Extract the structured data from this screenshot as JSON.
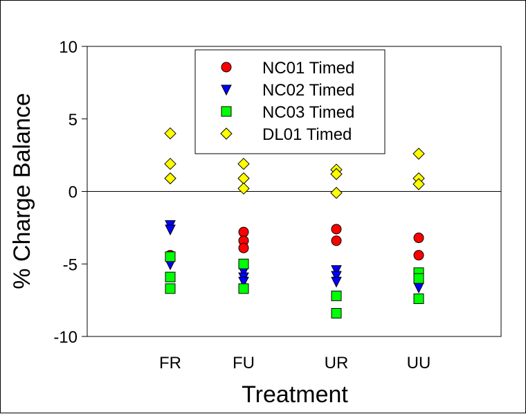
{
  "chart_data": {
    "type": "scatter",
    "title": "",
    "xlabel": "Treatment",
    "ylabel": "% Charge Balance",
    "categories": [
      "FR",
      "FU",
      "UR",
      "UU"
    ],
    "ylim": [
      -10,
      10
    ],
    "yticks": [
      "10",
      "5",
      "0",
      "-5",
      "-10"
    ],
    "zero_line": true,
    "grid": false,
    "legend_position": "top-center",
    "series": [
      {
        "name": "NC01 Timed",
        "marker": "circle",
        "color": "#ff0000",
        "points": [
          {
            "x": "FR",
            "y": -4.4
          },
          {
            "x": "FU",
            "y": -2.8
          },
          {
            "x": "FU",
            "y": -3.4
          },
          {
            "x": "FU",
            "y": -3.9
          },
          {
            "x": "UR",
            "y": -2.6
          },
          {
            "x": "UR",
            "y": -3.4
          },
          {
            "x": "UU",
            "y": -3.2
          },
          {
            "x": "UU",
            "y": -4.4
          }
        ]
      },
      {
        "name": "NC02 Timed",
        "marker": "triangle-down",
        "color": "#0000ff",
        "points": [
          {
            "x": "FR",
            "y": -2.3
          },
          {
            "x": "FR",
            "y": -2.6
          },
          {
            "x": "FR",
            "y": -5.0
          },
          {
            "x": "FU",
            "y": -5.5
          },
          {
            "x": "FU",
            "y": -5.9
          },
          {
            "x": "FU",
            "y": -6.2
          },
          {
            "x": "UR",
            "y": -5.4
          },
          {
            "x": "UR",
            "y": -5.8
          },
          {
            "x": "UR",
            "y": -6.2
          },
          {
            "x": "UU",
            "y": -6.6
          }
        ]
      },
      {
        "name": "NC03 Timed",
        "marker": "square",
        "color": "#00ff00",
        "points": [
          {
            "x": "FR",
            "y": -4.5
          },
          {
            "x": "FR",
            "y": -5.9
          },
          {
            "x": "FR",
            "y": -6.7
          },
          {
            "x": "FU",
            "y": -5.0
          },
          {
            "x": "FU",
            "y": -6.7
          },
          {
            "x": "UR",
            "y": -7.2
          },
          {
            "x": "UR",
            "y": -8.4
          },
          {
            "x": "UU",
            "y": -5.6
          },
          {
            "x": "UU",
            "y": -6.0
          },
          {
            "x": "UU",
            "y": -7.4
          }
        ]
      },
      {
        "name": "DL01 Timed",
        "marker": "diamond",
        "color": "#ffff00",
        "points": [
          {
            "x": "FR",
            "y": 4.0
          },
          {
            "x": "FR",
            "y": 1.9
          },
          {
            "x": "FR",
            "y": 0.9
          },
          {
            "x": "FU",
            "y": 1.9
          },
          {
            "x": "FU",
            "y": 0.9
          },
          {
            "x": "FU",
            "y": 0.2
          },
          {
            "x": "UR",
            "y": 1.5
          },
          {
            "x": "UR",
            "y": 1.2
          },
          {
            "x": "UR",
            "y": -0.1
          },
          {
            "x": "UU",
            "y": 2.6
          },
          {
            "x": "UU",
            "y": 0.9
          },
          {
            "x": "UU",
            "y": 0.5
          }
        ]
      }
    ]
  }
}
